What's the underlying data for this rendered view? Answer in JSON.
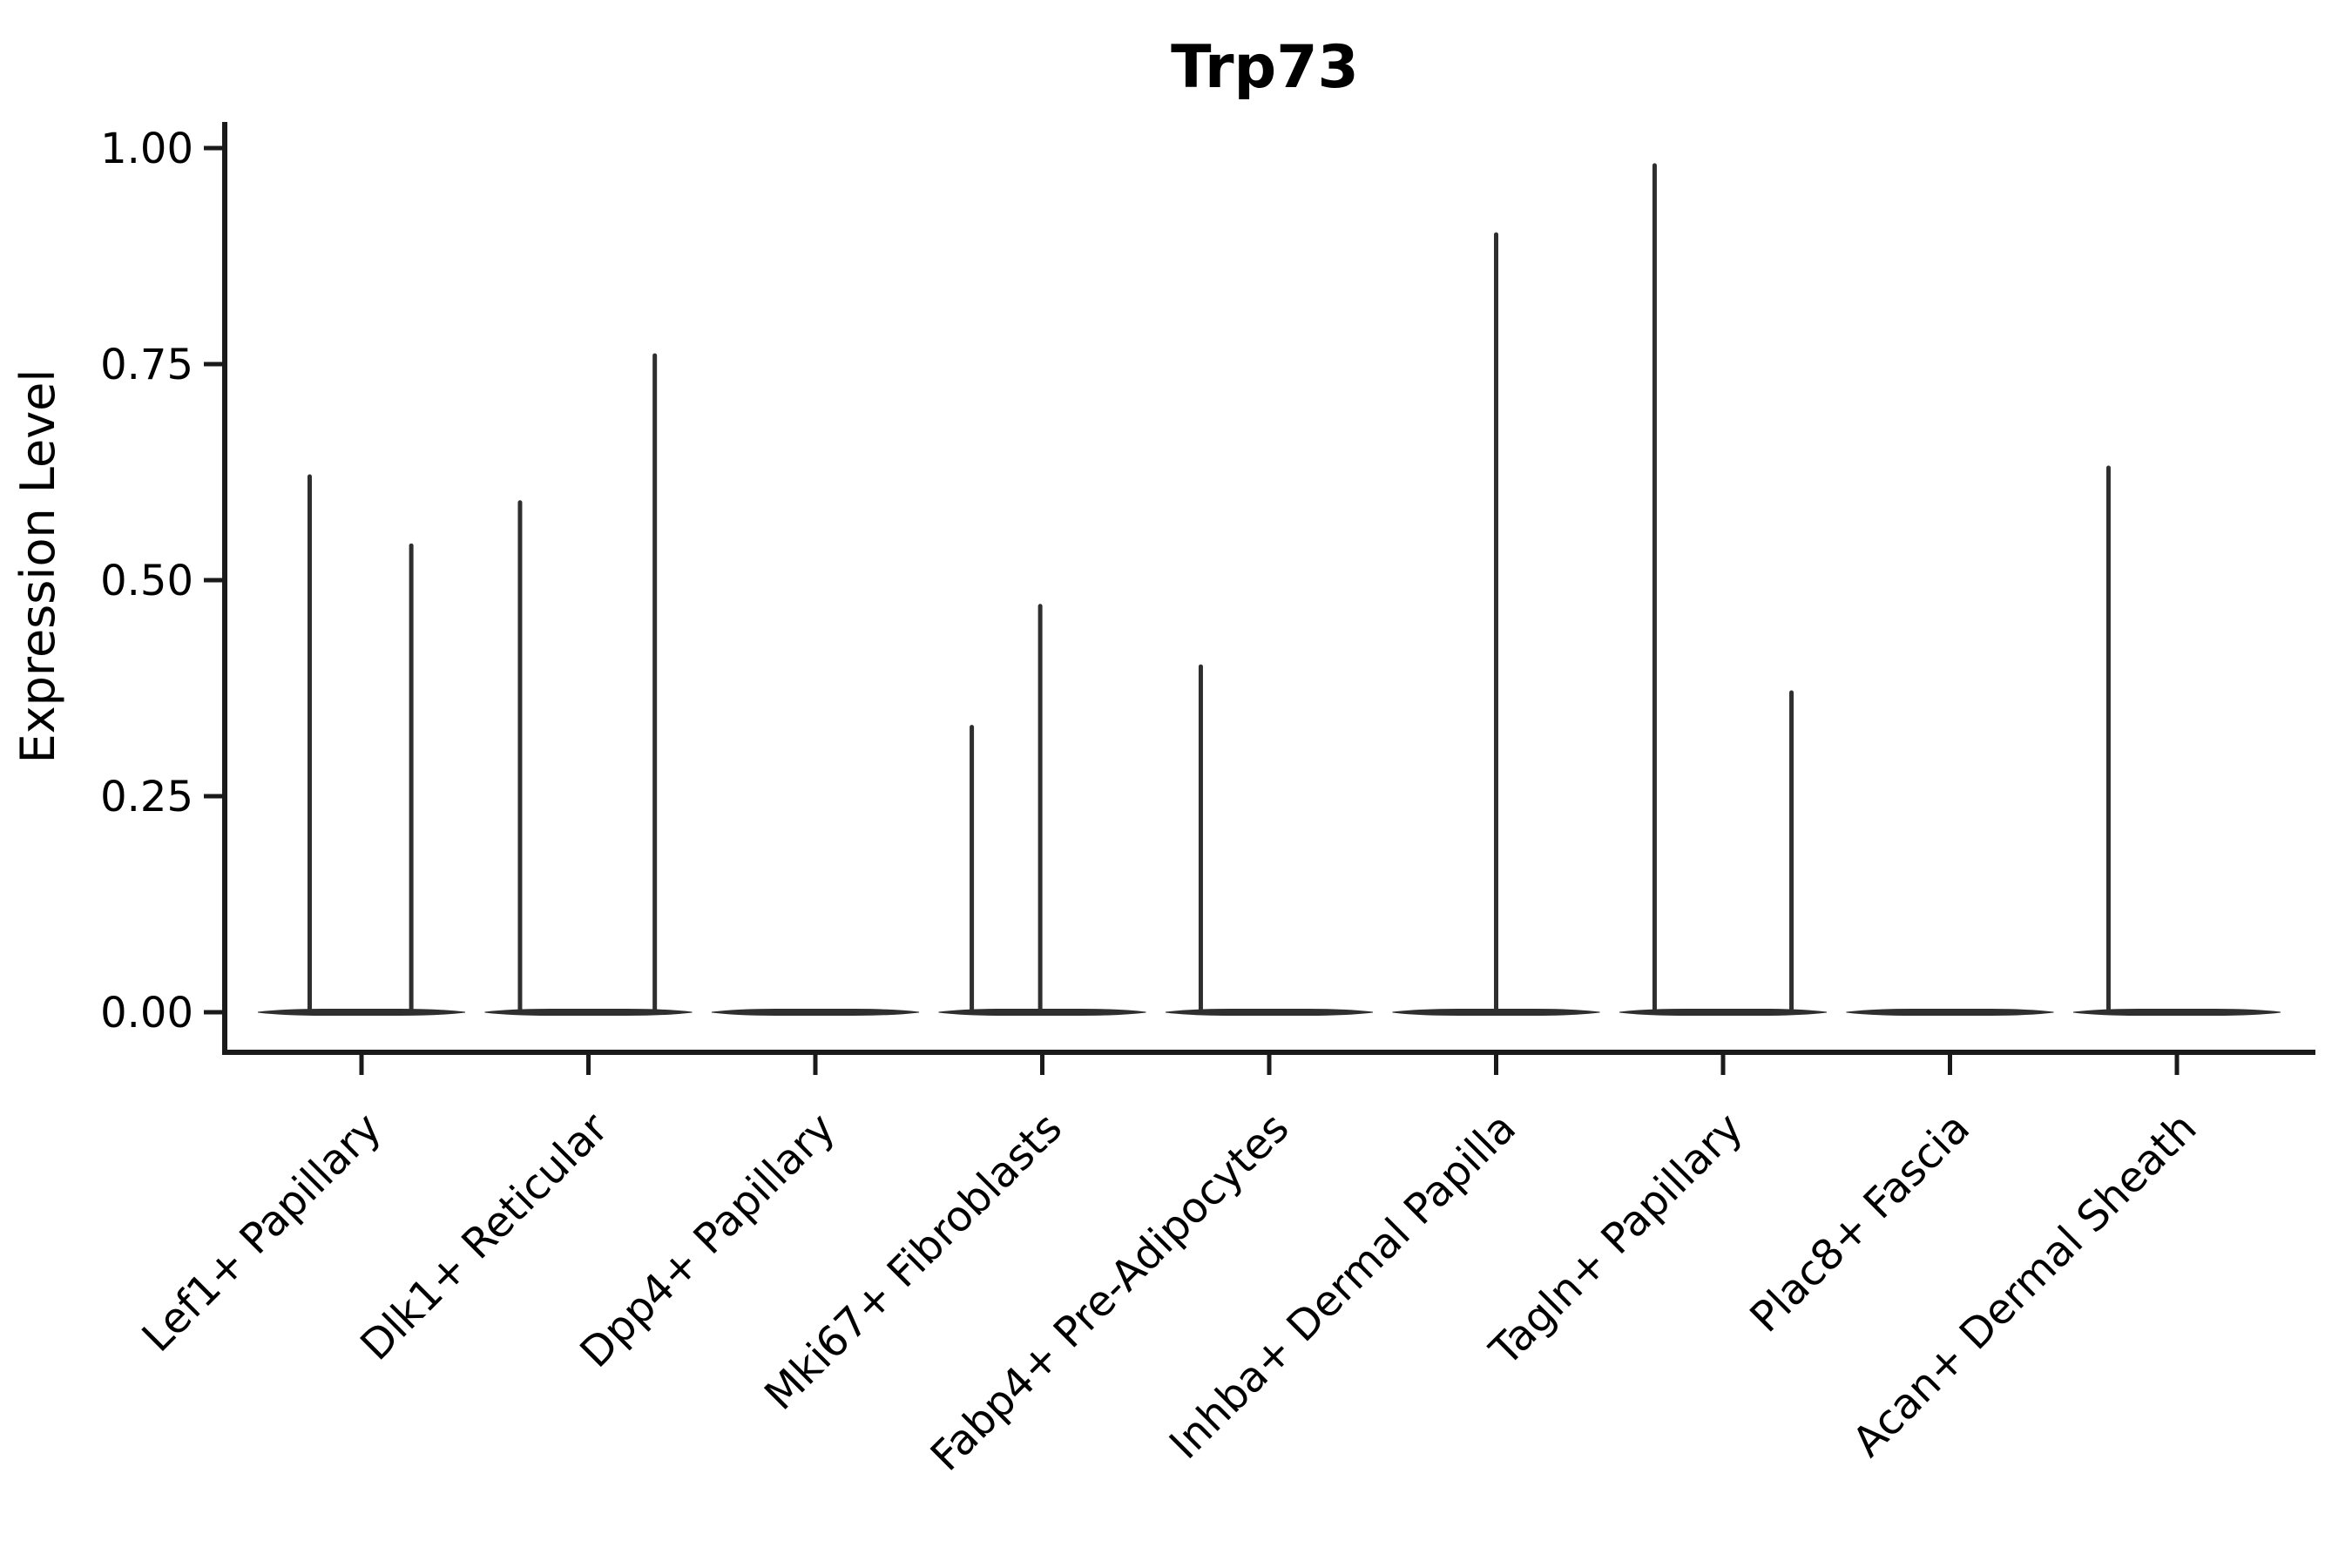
{
  "figure": {
    "background_color": "#ffffff",
    "text_color": "#000000",
    "axis_color": "#1a1a1a",
    "violin_color": "#2f2f2f"
  },
  "chart_data": {
    "type": "violin",
    "title": "Trp73",
    "xlabel": "",
    "ylabel": "Expression Level",
    "ylim": [
      -0.046,
      1.03
    ],
    "grid": false,
    "legend": "none",
    "yticks": [
      {
        "label": "0.00",
        "value": 0
      },
      {
        "label": "0.25",
        "value": 0.25
      },
      {
        "label": "0.50",
        "value": 0.5
      },
      {
        "label": "0.75",
        "value": 0.75
      },
      {
        "label": "1.00",
        "value": 1.0
      }
    ],
    "categories": [
      "Lef1+ Papillary",
      "Dlk1+ Reticular",
      "Dpp4+ Papillary",
      "Mki67+ Fibroblasts",
      "Fabp4+ Pre-Adipocytes",
      "Inhba+ Dermal Papilla",
      "Tagln+ Papillary",
      "Plac8+ Fascia",
      "Acan+ Dermal Sheath"
    ],
    "violins": [
      {
        "category": "Lef1+ Papillary",
        "baseline_value": 0,
        "spikes": [
          {
            "value": 0.62,
            "offset": -0.25
          },
          {
            "value": 0.54,
            "offset": 0.24
          }
        ]
      },
      {
        "category": "Dlk1+ Reticular",
        "baseline_value": 0,
        "spikes": [
          {
            "value": 0.59,
            "offset": -0.33
          },
          {
            "value": 0.76,
            "offset": 0.32
          }
        ]
      },
      {
        "category": "Dpp4+ Papillary",
        "baseline_value": 0,
        "spikes": []
      },
      {
        "category": "Mki67+ Fibroblasts",
        "baseline_value": 0,
        "spikes": [
          {
            "value": 0.33,
            "offset": -0.34
          },
          {
            "value": 0.47,
            "offset": -0.01
          }
        ]
      },
      {
        "category": "Fabp4+ Pre-Adipocytes",
        "baseline_value": 0,
        "spikes": [
          {
            "value": 0.4,
            "offset": -0.33
          }
        ]
      },
      {
        "category": "Inhba+ Dermal Papilla",
        "baseline_value": 0,
        "spikes": [
          {
            "value": 0.9,
            "offset": 0.0
          }
        ]
      },
      {
        "category": "Tagln+ Papillary",
        "baseline_value": 0,
        "spikes": [
          {
            "value": 0.98,
            "offset": -0.33
          },
          {
            "value": 0.37,
            "offset": 0.33
          }
        ]
      },
      {
        "category": "Plac8+ Fascia",
        "baseline_value": 0,
        "spikes": []
      },
      {
        "category": "Acan+ Dermal Sheath",
        "baseline_value": 0,
        "spikes": [
          {
            "value": 0.63,
            "offset": -0.33
          }
        ]
      }
    ]
  }
}
